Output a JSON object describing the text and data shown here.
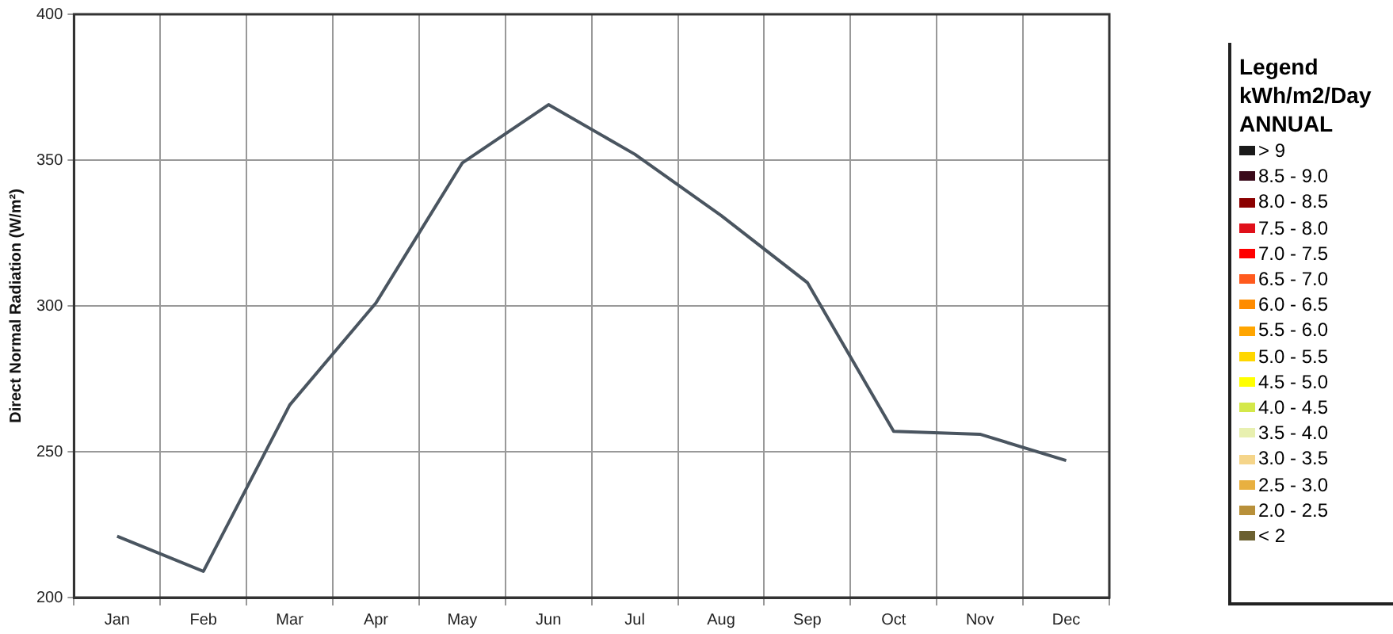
{
  "chart_data": [
    {
      "type": "line",
      "ylabel": "Direct Normal Radiation (W/m²)",
      "categories": [
        "Jan",
        "Feb",
        "Mar",
        "Apr",
        "May",
        "Jun",
        "Jul",
        "Aug",
        "Sep",
        "Oct",
        "Nov",
        "Dec"
      ],
      "series": [
        {
          "color": "#4a5560",
          "values": [
            221,
            209,
            266,
            301,
            349,
            369,
            352,
            331,
            308,
            257,
            256,
            247
          ]
        }
      ],
      "ylim": [
        200,
        400
      ],
      "yticks": [
        200,
        250,
        300,
        350,
        400
      ],
      "grid": true,
      "legend": false,
      "marker": "none",
      "line_style": "solid"
    },
    {
      "type": "other",
      "title": "Legend",
      "subtitle": "kWh/m2/Day",
      "annotations": [
        "ANNUAL"
      ],
      "categories": [
        "> 9",
        "8.5 - 9.0",
        "8.0 - 8.5",
        "7.5 - 8.0",
        "7.0 - 7.5",
        "6.5 - 7.0",
        "6.0 - 6.5",
        "5.5 - 6.0",
        "5.0 - 5.5",
        "4.5 - 5.0",
        "4.0 - 4.5",
        "3.5 - 4.0",
        "3.0 - 3.5",
        "2.5 - 3.0",
        "2.0 - 2.5",
        "< 2"
      ],
      "colors": [
        "#1a1a1a",
        "#3a0a1a",
        "#8b0000",
        "#e0101a",
        "#ff0000",
        "#ff5a1e",
        "#ff8c00",
        "#ffa500",
        "#ffd700",
        "#ffff00",
        "#d4e84a",
        "#e8f0b0",
        "#f5d58a",
        "#e8b040",
        "#b8903a",
        "#6b6030"
      ]
    }
  ]
}
